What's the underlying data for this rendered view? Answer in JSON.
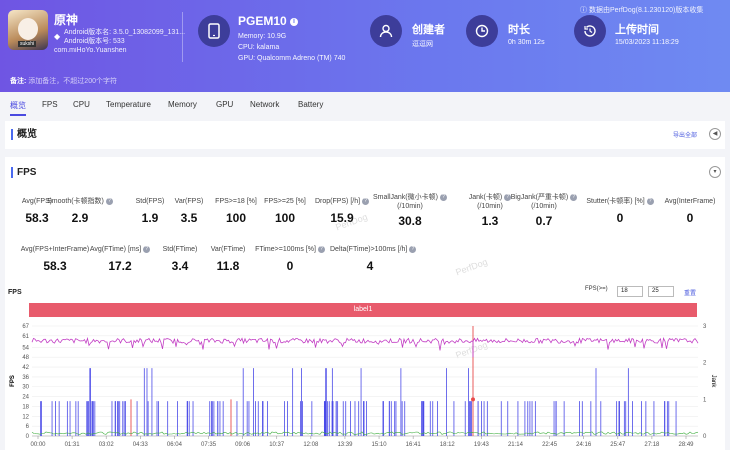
{
  "header": {
    "app_name": "原神",
    "icon_tag": "sukshi",
    "version_lines": [
      "Android版本名: 3.5.0_13082099_131...",
      "Android版本号: 533"
    ],
    "package": "com.miHoYo.Yuanshen",
    "device": {
      "name": "PGEM10",
      "info_icon": "info-icon",
      "memory": "Memory: 10.9G",
      "cpu": "CPU: kalama",
      "gpu": "GPU: Qualcomm Adreno (TM) 740"
    },
    "creator": {
      "title": "创建者",
      "value": "逗逗网"
    },
    "duration": {
      "title": "时长",
      "value": "0h 30m 12s"
    },
    "upload": {
      "title": "上传时间",
      "value": "15/03/2023 11:18:29"
    },
    "source": "数据由PerfDog(8.1.230120)版本收集",
    "note_label": "备注:",
    "note_placeholder": "添加备注，不超过200个字符"
  },
  "tabs": [
    "概览",
    "FPS",
    "CPU",
    "Temperature",
    "Memory",
    "GPU",
    "Network",
    "Battery"
  ],
  "overview": {
    "title": "概览",
    "export": "导出全部"
  },
  "fps_section": {
    "title": "FPS",
    "stats_row1": [
      {
        "label": "Avg(FPS)",
        "value": "58.3",
        "help": false
      },
      {
        "label": "Smooth(卡顿指数)",
        "value": "2.9",
        "help": true
      },
      {
        "label": "Std(FPS)",
        "value": "1.9",
        "help": false
      },
      {
        "label": "Var(FPS)",
        "value": "3.5",
        "help": false
      },
      {
        "label": "FPS>=18 [%]",
        "value": "100",
        "help": false
      },
      {
        "label": "FPS>=25 [%]",
        "value": "100",
        "help": false
      },
      {
        "label": "Drop(FPS) [/h]",
        "value": "15.9",
        "help": true
      },
      {
        "label": "SmallJank(微小卡顿)",
        "label2": "(/10min)",
        "value": "30.8",
        "help": true
      },
      {
        "label": "Jank(卡顿)",
        "label2": "(/10min)",
        "value": "1.3",
        "help": true
      },
      {
        "label": "BigJank(严重卡顿)",
        "label2": "(/10min)",
        "value": "0.7",
        "help": true
      },
      {
        "label": "Stutter(卡顿率) [%]",
        "value": "0",
        "help": true
      },
      {
        "label": "Avg(InterFrame)",
        "value": "0",
        "help": false
      }
    ],
    "stats_row2": [
      {
        "label": "Avg(FPS+InterFrame)",
        "value": "58.3",
        "help": false
      },
      {
        "label": "Avg(FTime) [ms]",
        "value": "17.2",
        "help": true
      },
      {
        "label": "Std(FTime)",
        "value": "3.4",
        "help": false
      },
      {
        "label": "Var(FTime)",
        "value": "11.8",
        "help": false
      },
      {
        "label": "FTime>=100ms [%]",
        "value": "0",
        "help": true
      },
      {
        "label": "Delta(FTime)>100ms [/h]",
        "value": "4",
        "help": true
      }
    ],
    "watermark": "PerfDog"
  },
  "chart_controls": {
    "title": "FPS",
    "fps_label": "FPS(>=)",
    "threshold1": "18",
    "threshold2": "25",
    "reset": "重置",
    "label_bar": "label1"
  },
  "chart_data": {
    "type": "line",
    "ylabel": "FPS",
    "y2label": "Jank",
    "y_ticks": [
      0,
      6,
      12,
      18,
      24,
      30,
      36,
      42,
      48,
      54,
      61,
      67
    ],
    "y2_ticks": [
      0,
      1,
      2,
      3
    ],
    "ylim": [
      0,
      67
    ],
    "y2lim": [
      0,
      3
    ],
    "x_ticks": [
      "00:00",
      "01:31",
      "03:02",
      "04:33",
      "06:04",
      "07:35",
      "09:06",
      "10:37",
      "12:08",
      "13:39",
      "15:10",
      "16:41",
      "18:12",
      "19:43",
      "21:14",
      "22:45",
      "24:16",
      "25:47",
      "27:18",
      "28:49"
    ],
    "series": [
      {
        "name": "FPS",
        "color": "#c23ec4",
        "typical": 58,
        "min_dip": 48
      },
      {
        "name": "Jank",
        "color": "#4a4ae8"
      },
      {
        "name": "BigJank",
        "color": "#e84a4a"
      },
      {
        "name": "InterFrame",
        "color": "#3fae3f",
        "typical": 1
      }
    ]
  }
}
